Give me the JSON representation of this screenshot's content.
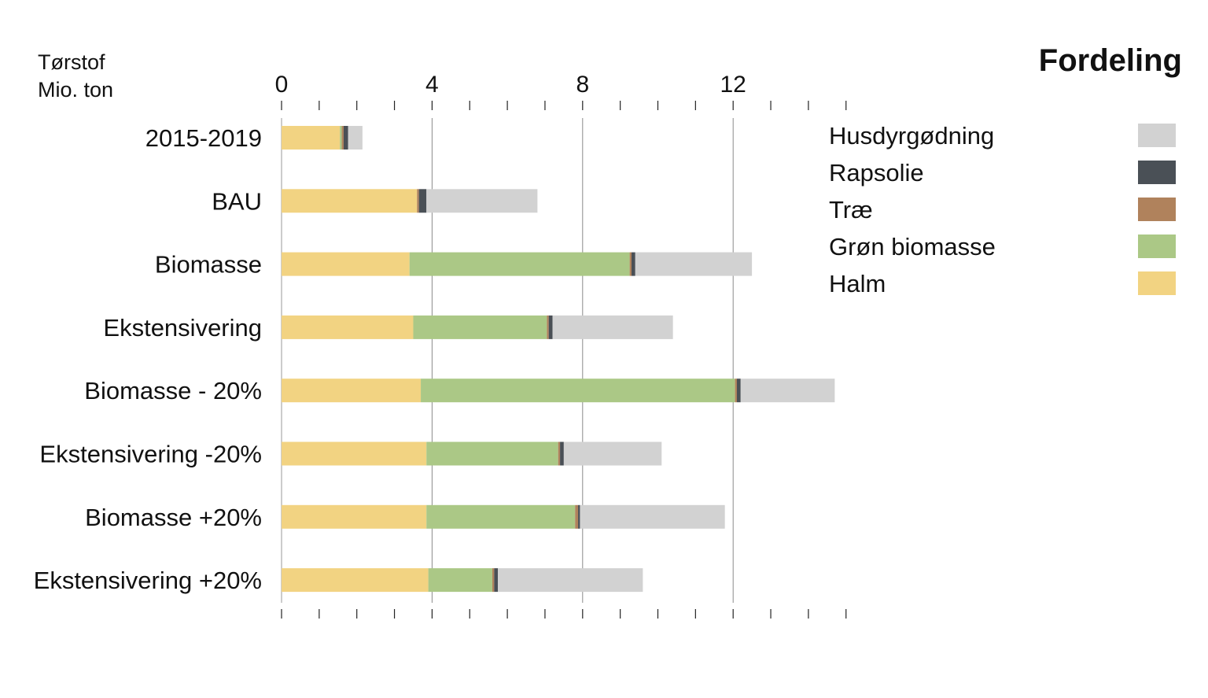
{
  "chart_data": {
    "type": "bar",
    "orientation": "horizontal",
    "stacked": true,
    "title": "Fordeling",
    "unit_label": [
      "Tørstof",
      "Mio. ton"
    ],
    "xlim": [
      0,
      15
    ],
    "x_ticks": [
      0,
      4,
      8,
      12
    ],
    "x_minor_step": 1,
    "grid": true,
    "legend_position": "top-right",
    "categories": [
      "2015-2019",
      "BAU",
      "Biomasse",
      "Ekstensivering",
      "Biomasse - 20%",
      "Ekstensivering -20%",
      "Biomasse +20%",
      "Ekstensivering +20%"
    ],
    "series": [
      {
        "name": "Halm",
        "color": "#f2d382",
        "values": [
          1.55,
          3.6,
          3.4,
          3.5,
          3.7,
          3.85,
          3.85,
          3.9
        ]
      },
      {
        "name": "Grøn biomasse",
        "color": "#abc886",
        "values": [
          0.05,
          0.0,
          5.85,
          3.55,
          8.35,
          3.5,
          3.95,
          1.7
        ]
      },
      {
        "name": "Træ",
        "color": "#b0825c",
        "values": [
          0.05,
          0.05,
          0.05,
          0.05,
          0.05,
          0.05,
          0.08,
          0.05
        ]
      },
      {
        "name": "Rapsolie",
        "color": "#4a5056",
        "values": [
          0.12,
          0.2,
          0.1,
          0.1,
          0.1,
          0.1,
          0.05,
          0.1
        ]
      },
      {
        "name": "Husdyrgødning",
        "color": "#d2d2d2",
        "values": [
          0.38,
          2.95,
          3.1,
          3.2,
          2.5,
          2.6,
          3.85,
          3.85
        ]
      }
    ],
    "legend_order": [
      "Husdyrgødning",
      "Rapsolie",
      "Træ",
      "Grøn biomasse",
      "Halm"
    ]
  }
}
